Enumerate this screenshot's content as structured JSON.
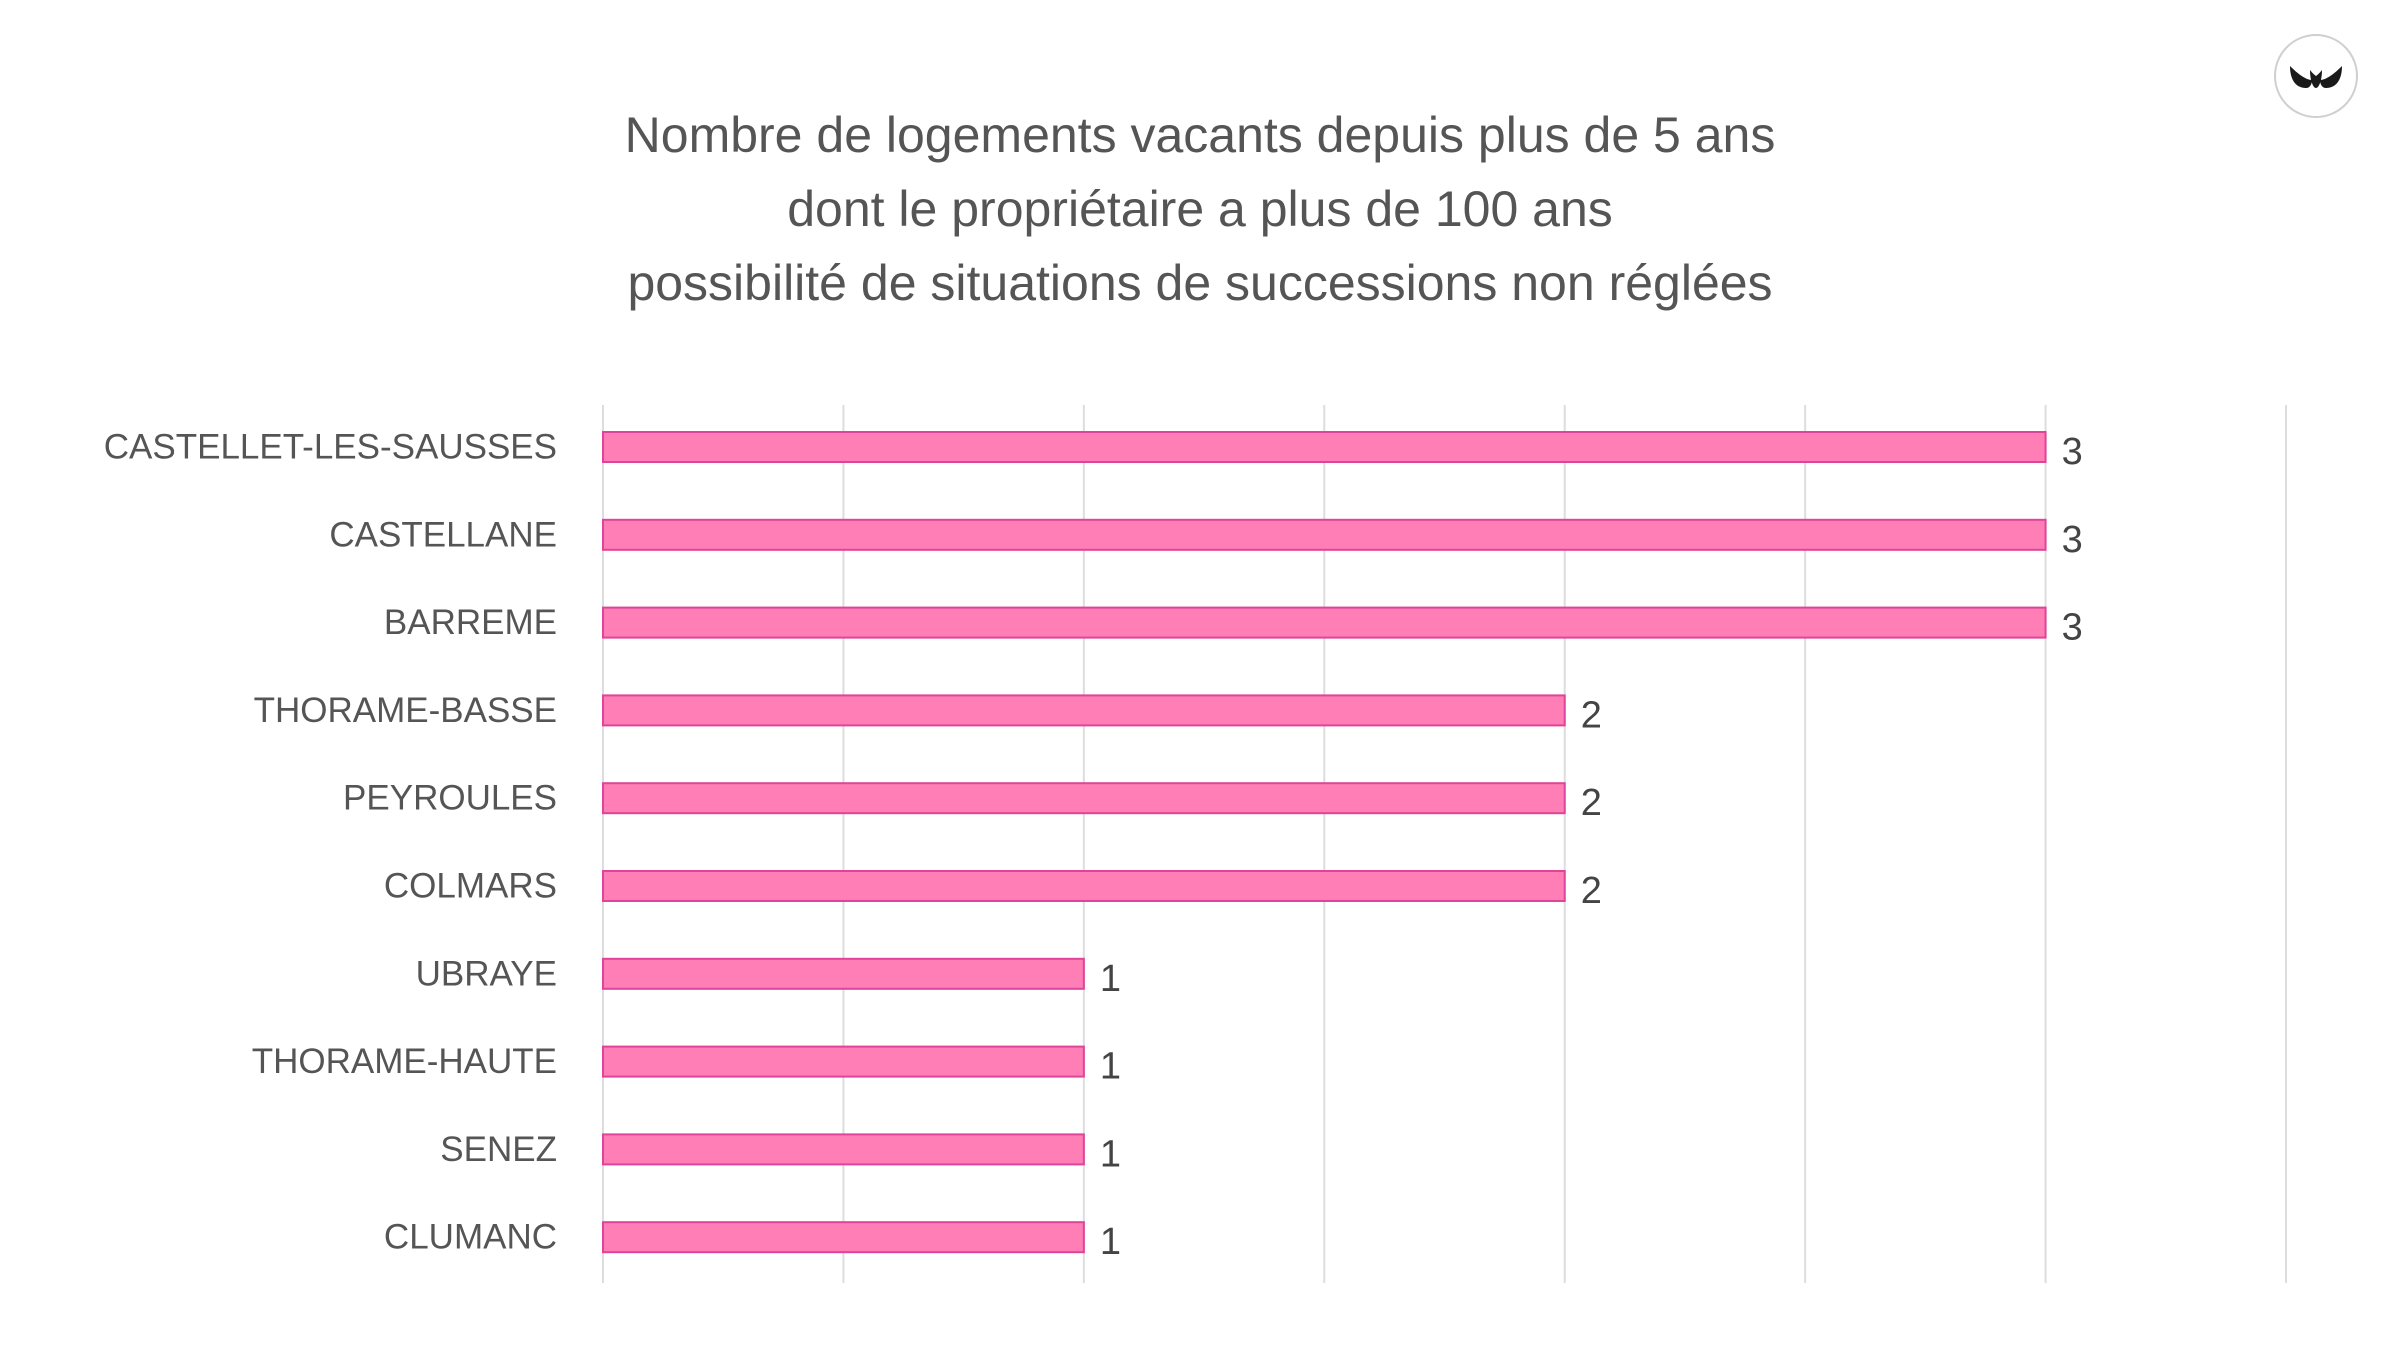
{
  "chart_data": {
    "type": "bar",
    "orientation": "horizontal",
    "title_lines": [
      "Nombre de logements vacants depuis plus de 5 ans",
      "dont le propriétaire a plus de 100 ans",
      "possibilité de situations de successions non réglées"
    ],
    "categories": [
      "CASTELLET-LES-SAUSSES",
      "CASTELLANE",
      "BARREME",
      "THORAME-BASSE",
      "PEYROULES",
      "COLMARS",
      "UBRAYE",
      "THORAME-HAUTE",
      "SENEZ",
      "CLUMANC"
    ],
    "values": [
      3,
      3,
      3,
      2,
      2,
      2,
      1,
      1,
      1,
      1
    ],
    "data_labels": [
      "3",
      "3",
      "3",
      "2",
      "2",
      "2",
      "1",
      "1",
      "1",
      "1"
    ],
    "xlim": [
      0,
      3.5
    ],
    "grid": true,
    "legend": "none",
    "colors": {
      "bar_fill": "#ff7eb6",
      "bar_stroke": "#e0449a",
      "grid": "#dddddd",
      "text": "#555555"
    }
  },
  "logo": {
    "icon": "leaf-pair-logo-icon"
  }
}
